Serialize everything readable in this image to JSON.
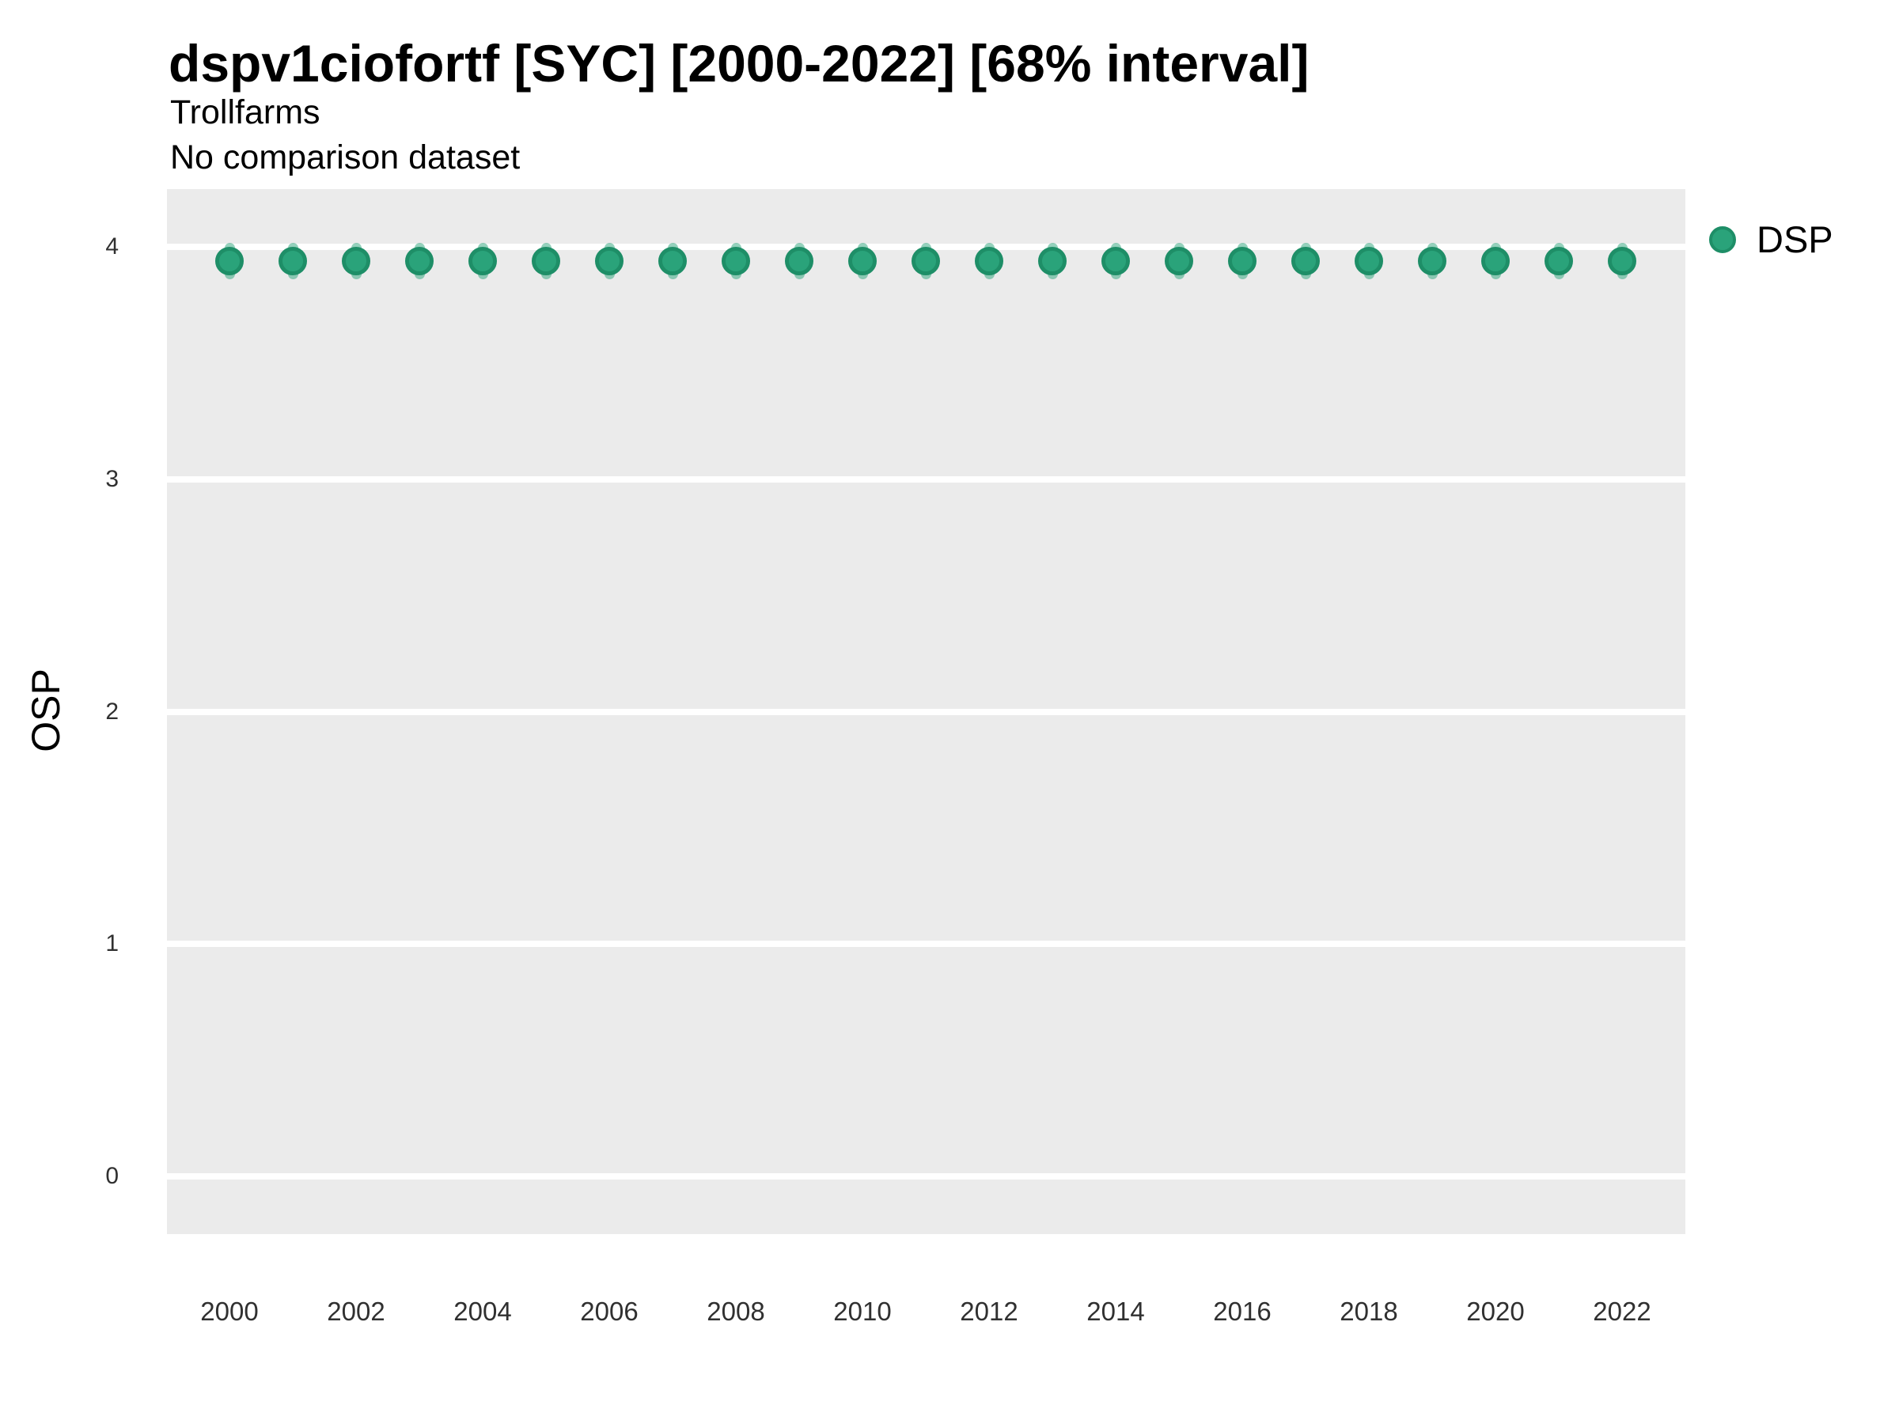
{
  "header": {
    "title": "dspv1ciofortf [SYC] [2000-2022] [68% interval]",
    "subtitle": "Trollfarms",
    "note": "No comparison dataset"
  },
  "legend": {
    "items": [
      {
        "label": "DSP",
        "marker": "circle-icon"
      }
    ],
    "position": "right-top"
  },
  "colors": {
    "point_fill": "#2aa37a",
    "point_stroke": "#1e8e67",
    "errorbar": "rgba(42,163,122,0.5)",
    "panel_background": "#ebebeb",
    "gridline": "#ffffff",
    "tick_text": "#303030"
  },
  "chart_data": {
    "type": "scatter",
    "title": "dspv1ciofortf [SYC] [2000-2022] [68% interval]",
    "subtitle": "Trollfarms",
    "annotation": "No comparison dataset",
    "xlabel": "",
    "ylabel": "OSP",
    "grid": "horizontal major gridlines only, white on gray panel",
    "legend_position": "right-top",
    "x": [
      2000,
      2001,
      2002,
      2003,
      2004,
      2005,
      2006,
      2007,
      2008,
      2009,
      2010,
      2011,
      2012,
      2013,
      2014,
      2015,
      2016,
      2017,
      2018,
      2019,
      2020,
      2021,
      2022
    ],
    "series": [
      {
        "name": "DSP",
        "values": [
          3.94,
          3.94,
          3.94,
          3.94,
          3.94,
          3.94,
          3.94,
          3.94,
          3.94,
          3.94,
          3.94,
          3.94,
          3.94,
          3.94,
          3.94,
          3.94,
          3.94,
          3.94,
          3.94,
          3.94,
          3.94,
          3.94,
          3.94
        ],
        "lower_68": [
          3.86,
          3.86,
          3.86,
          3.86,
          3.86,
          3.86,
          3.86,
          3.86,
          3.86,
          3.86,
          3.86,
          3.86,
          3.86,
          3.86,
          3.86,
          3.86,
          3.86,
          3.86,
          3.86,
          3.86,
          3.86,
          3.86,
          3.86
        ],
        "upper_68": [
          4.02,
          4.02,
          4.02,
          4.02,
          4.02,
          4.02,
          4.02,
          4.02,
          4.02,
          4.02,
          4.02,
          4.02,
          4.02,
          4.02,
          4.02,
          4.02,
          4.02,
          4.02,
          4.02,
          4.02,
          4.02,
          4.02,
          4.02
        ]
      }
    ],
    "ylim": [
      -0.25,
      4.25
    ],
    "y_ticks": [
      0,
      1,
      2,
      3,
      4
    ],
    "x_ticks": [
      2000,
      2002,
      2004,
      2006,
      2008,
      2010,
      2012,
      2014,
      2016,
      2018,
      2020,
      2022
    ]
  }
}
